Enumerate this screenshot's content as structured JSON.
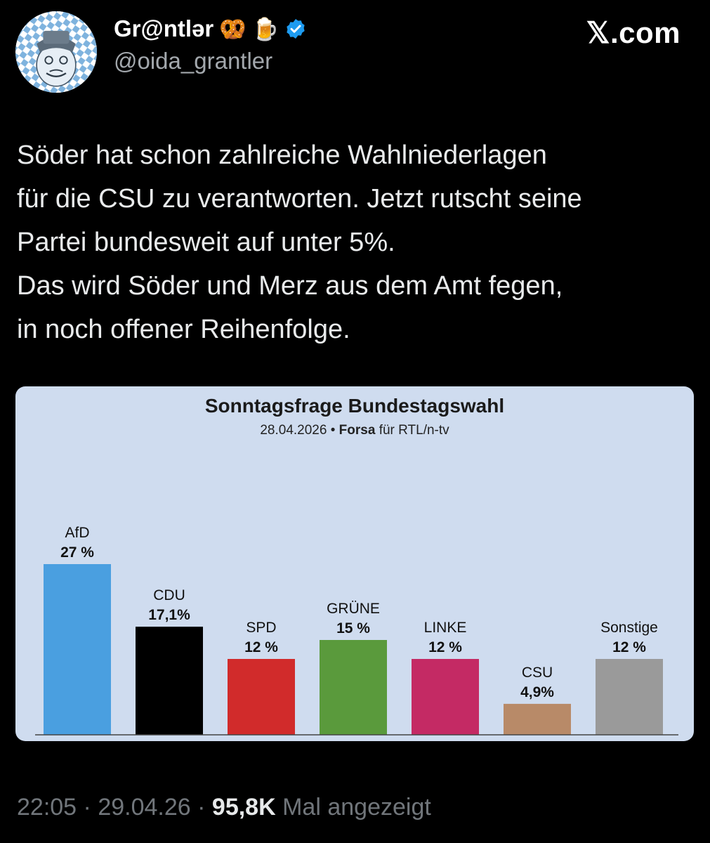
{
  "tweet": {
    "display_name": "Gr@ntlər",
    "emojis": [
      "🥨",
      "🍺"
    ],
    "handle": "@oida_grantler",
    "brand": "𝕏.com",
    "text_lines": [
      "Söder hat schon zahlreiche Wahlniederlagen",
      "für die CSU zu verantworten. Jetzt rutscht seine",
      "Partei bundesweit auf unter 5%.",
      "Das wird Söder und Merz aus dem Amt fegen,",
      "in noch offener Reihenfolge."
    ],
    "time": "22:05",
    "date": "29.04.26",
    "sep": "·",
    "views": "95,8K",
    "views_suffix": "Mal angezeigt"
  },
  "colors": {
    "verified": "#1d9bf0",
    "chart_bg": "#cfdcef"
  },
  "chart_data": {
    "type": "bar",
    "title": "Sonntagsfrage Bundestagswahl",
    "subtitle_date": "28.04.2026",
    "subtitle_sep": "•",
    "subtitle_source": "Forsa",
    "subtitle_rest": "für RTL/n-tv",
    "categories": [
      "AfD",
      "CDU",
      "SPD",
      "GRÜNE",
      "LINKE",
      "CSU",
      "Sonstige"
    ],
    "values": [
      27,
      17.1,
      12,
      15,
      12,
      4.9,
      12
    ],
    "value_labels": [
      "27 %",
      "17,1%",
      "12 %",
      "15 %",
      "12 %",
      "4,9%",
      "12 %"
    ],
    "colors": [
      "#4a9fe0",
      "#000000",
      "#d12b2b",
      "#5a9a3c",
      "#c42a64",
      "#b88a68",
      "#9a9a9a"
    ],
    "ylim": [
      0,
      27
    ]
  }
}
